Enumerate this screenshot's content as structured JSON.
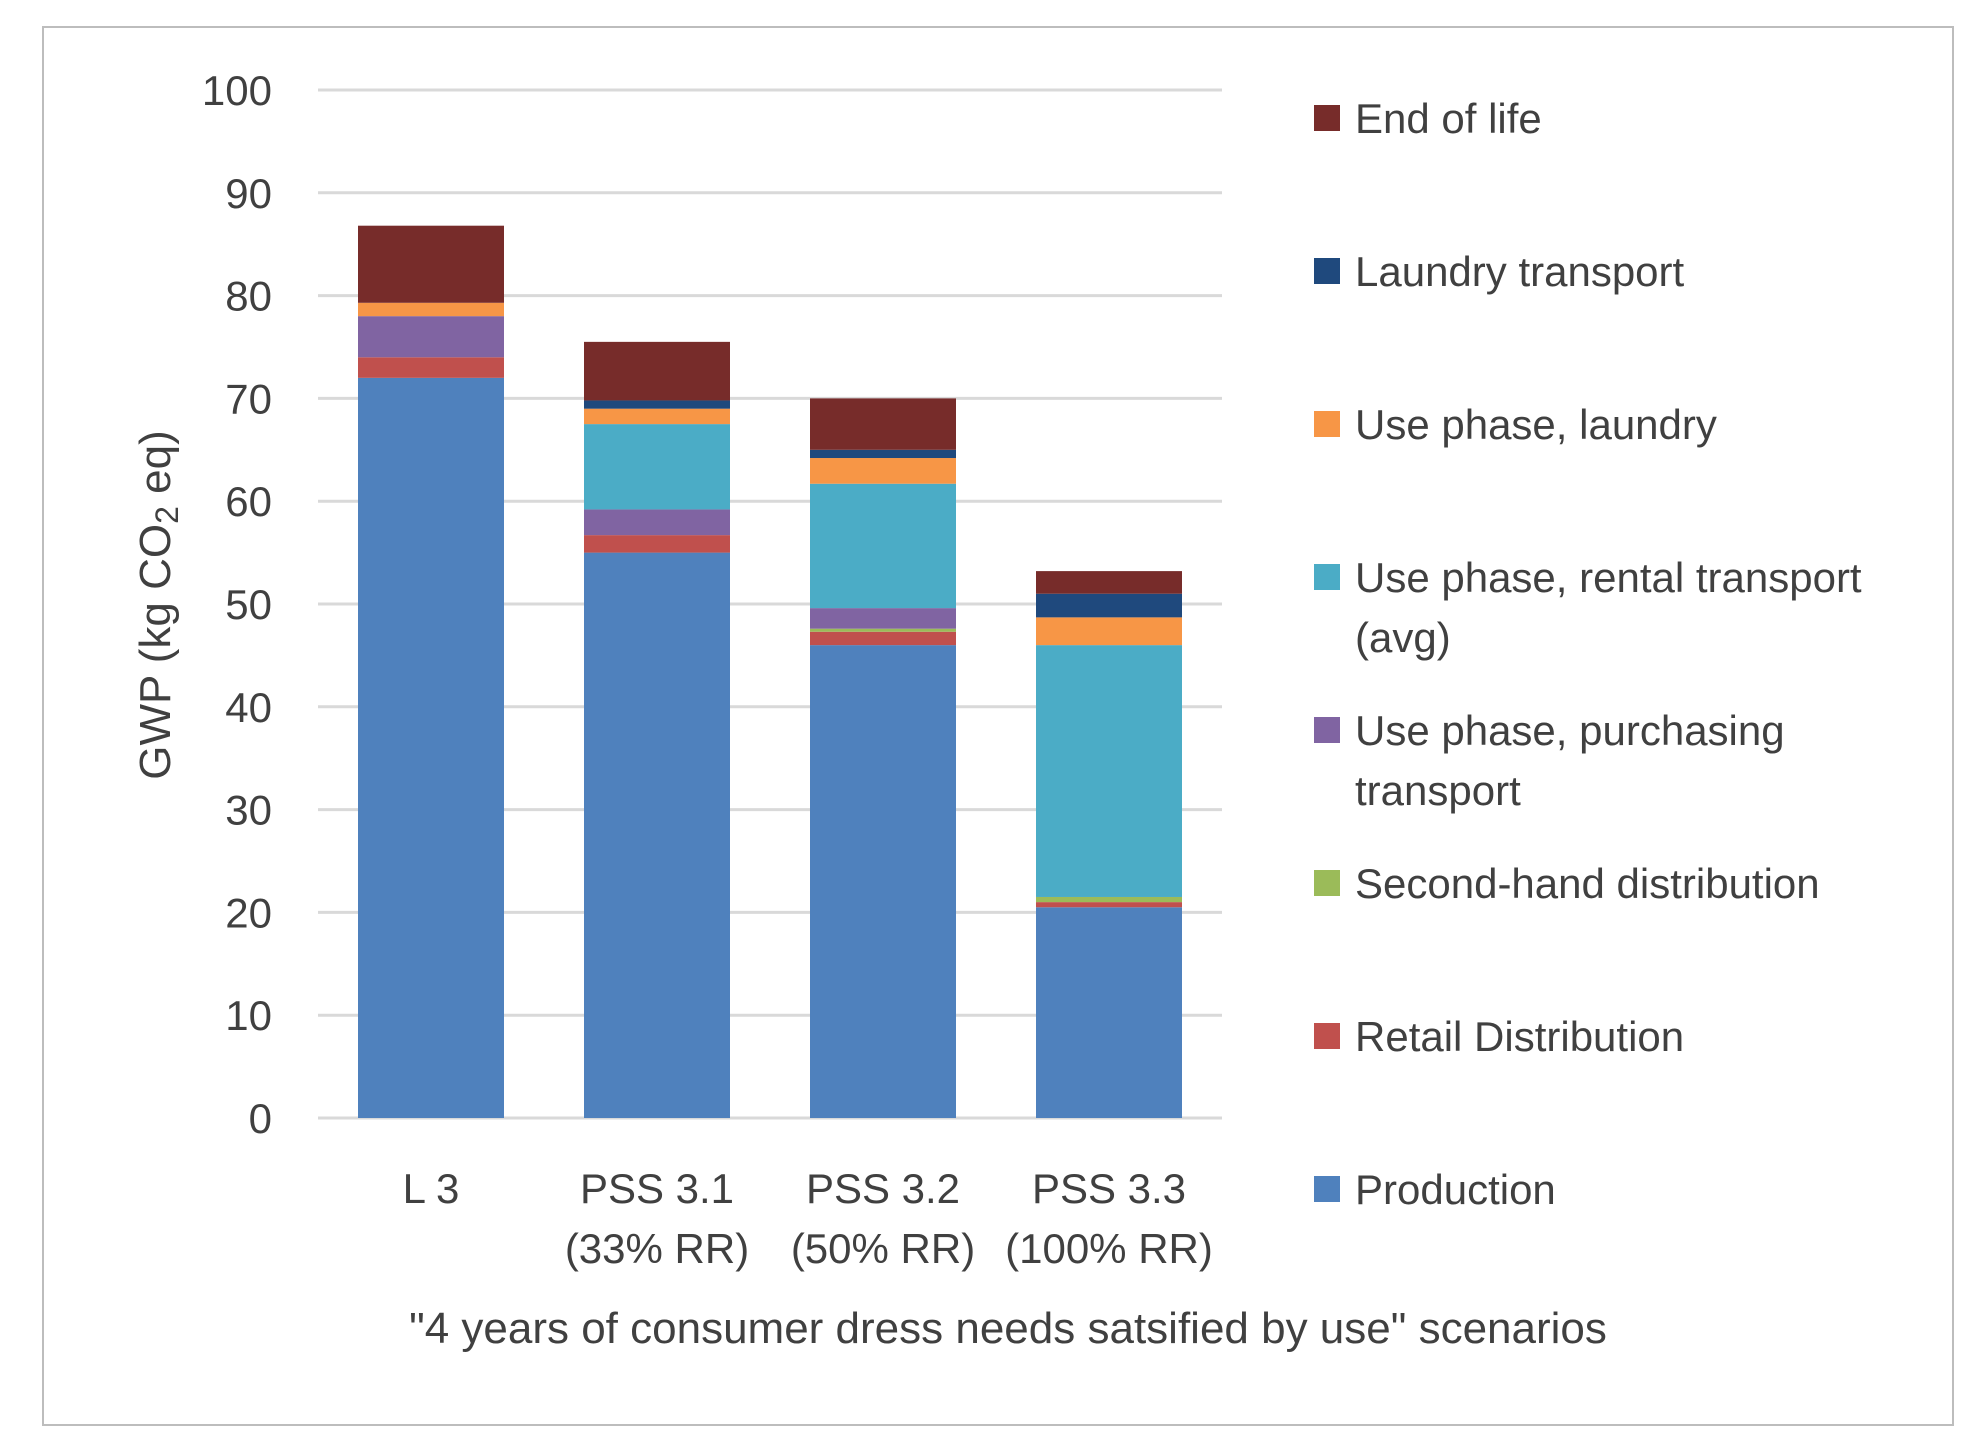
{
  "chart_data": {
    "type": "bar",
    "stacked": true,
    "title": "",
    "xlabel": "\"4 years of consumer dress needs satsified by use\" scenarios",
    "ylabel": "GWP (kg CO2 eq)",
    "ylim": [
      0,
      100
    ],
    "yticks": [
      0,
      10,
      20,
      30,
      40,
      50,
      60,
      70,
      80,
      90,
      100
    ],
    "grid": true,
    "legend_position": "right",
    "categories": [
      [
        "L 3"
      ],
      [
        "PSS 3.1",
        "(33% RR)"
      ],
      [
        "PSS 3.2",
        "(50% RR)"
      ],
      [
        "PSS 3.3",
        "(100% RR)"
      ]
    ],
    "series": [
      {
        "name": "Production",
        "color": "#4F81BD",
        "values": [
          72,
          55,
          46,
          20.5
        ]
      },
      {
        "name": "Retail Distribution",
        "color": "#C0504D",
        "values": [
          2,
          1.7,
          1.3,
          0.5
        ]
      },
      {
        "name": "Second-hand distribution",
        "color": "#9BBB59",
        "values": [
          0,
          0,
          0.3,
          0.5
        ]
      },
      {
        "name": "Use phase, purchasing transport",
        "color": "#8064A2",
        "values": [
          4,
          2.5,
          2,
          0
        ]
      },
      {
        "name": "Use phase, rental transport (avg)",
        "color": "#4BACC6",
        "values": [
          0,
          8.3,
          12.1,
          24.5
        ]
      },
      {
        "name": "Use phase, laundry",
        "color": "#F79646",
        "values": [
          1.3,
          1.5,
          2.5,
          2.7
        ]
      },
      {
        "name": "Laundry transport",
        "color": "#1F497D",
        "values": [
          0,
          0.8,
          0.8,
          2.3
        ]
      },
      {
        "name": "End of life",
        "color": "#772C2A",
        "values": [
          7.5,
          5.7,
          5,
          2.2
        ]
      }
    ],
    "legend_order": [
      {
        "lines": [
          "End of life"
        ],
        "color": "#772C2A"
      },
      {
        "lines": [
          "Laundry transport"
        ],
        "color": "#1F497D"
      },
      {
        "lines": [
          "Use phase, laundry"
        ],
        "color": "#F79646"
      },
      {
        "lines": [
          "Use phase, rental transport",
          "(avg)"
        ],
        "color": "#4BACC6"
      },
      {
        "lines": [
          "Use phase, purchasing",
          "transport"
        ],
        "color": "#8064A2"
      },
      {
        "lines": [
          "Second-hand distribution"
        ],
        "color": "#9BBB59"
      },
      {
        "lines": [
          "Retail Distribution"
        ],
        "color": "#C0504D"
      },
      {
        "lines": [
          "Production"
        ],
        "color": "#4F81BD"
      }
    ]
  }
}
